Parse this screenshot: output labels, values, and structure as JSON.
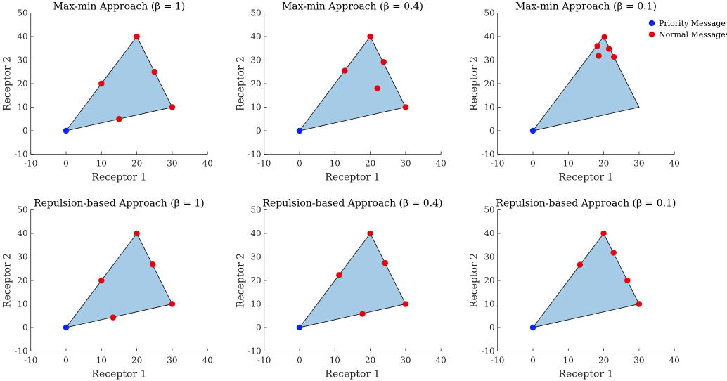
{
  "colors": {
    "priority": "#0b24fb",
    "normal": "#e8000b",
    "hull_fill": "#a6cbe6",
    "hull_stroke": "#1a1a1a",
    "axis": "#262626"
  },
  "legend": {
    "placement": "top-right",
    "entries": [
      "Priority Message",
      "Normal Messages"
    ]
  },
  "chart_data": [
    {
      "type": "scatter",
      "title": "Max-min Approach (β = 1)",
      "xlabel": "Receptor 1",
      "ylabel": "Receptor 2",
      "xlim": [
        -10,
        40
      ],
      "ylim": [
        -10,
        50
      ],
      "xticks": [
        -10,
        0,
        10,
        20,
        30,
        40
      ],
      "yticks": [
        -10,
        0,
        10,
        20,
        30,
        40,
        50
      ],
      "hull": [
        [
          0,
          0
        ],
        [
          20,
          40
        ],
        [
          30,
          10
        ]
      ],
      "priority": [
        [
          0,
          0
        ]
      ],
      "normal": [
        [
          20,
          40
        ],
        [
          10,
          20
        ],
        [
          25,
          25
        ],
        [
          30,
          10
        ],
        [
          15,
          5
        ]
      ]
    },
    {
      "type": "scatter",
      "title": "Max-min Approach (β = 0.4)",
      "xlabel": "Receptor 1",
      "ylabel": "Receptor 2",
      "xlim": [
        -10,
        40
      ],
      "ylim": [
        -10,
        50
      ],
      "xticks": [
        -10,
        0,
        10,
        20,
        30,
        40
      ],
      "yticks": [
        -10,
        0,
        10,
        20,
        30,
        40,
        50
      ],
      "hull": [
        [
          0,
          0
        ],
        [
          20,
          40
        ],
        [
          30,
          10
        ]
      ],
      "priority": [
        [
          0,
          0
        ]
      ],
      "normal": [
        [
          20,
          40
        ],
        [
          12.8,
          25.5
        ],
        [
          23.8,
          29.2
        ],
        [
          22,
          18
        ],
        [
          30,
          10
        ]
      ]
    },
    {
      "type": "scatter",
      "title": "Max-min Approach (β = 0.1)",
      "xlabel": "Receptor 1",
      "ylabel": "Receptor 2",
      "xlim": [
        -10,
        40
      ],
      "ylim": [
        -10,
        50
      ],
      "xticks": [
        -10,
        0,
        10,
        20,
        30,
        40
      ],
      "yticks": [
        -10,
        0,
        10,
        20,
        30,
        40,
        50
      ],
      "hull": [
        [
          0,
          0
        ],
        [
          20,
          40
        ],
        [
          30,
          10
        ]
      ],
      "priority": [
        [
          0,
          0
        ]
      ],
      "normal": [
        [
          20.2,
          39.8
        ],
        [
          18.2,
          36
        ],
        [
          21.5,
          34.8
        ],
        [
          18.6,
          31.8
        ],
        [
          22.9,
          31.3
        ]
      ],
      "legend": true
    },
    {
      "type": "scatter",
      "title": "Repulsion-based Approach (β = 1)",
      "xlabel": "Receptor 1",
      "ylabel": "Receptor 2",
      "xlim": [
        -10,
        40
      ],
      "ylim": [
        -10,
        50
      ],
      "xticks": [
        -10,
        0,
        10,
        20,
        30,
        40
      ],
      "yticks": [
        -10,
        0,
        10,
        20,
        30,
        40,
        50
      ],
      "hull": [
        [
          0,
          0
        ],
        [
          20,
          40
        ],
        [
          30,
          10
        ]
      ],
      "priority": [
        [
          0,
          0
        ]
      ],
      "normal": [
        [
          20,
          40
        ],
        [
          10,
          20
        ],
        [
          24.5,
          26.8
        ],
        [
          30,
          10
        ],
        [
          13.3,
          4.3
        ]
      ]
    },
    {
      "type": "scatter",
      "title": "Repulsion-based Approach (β = 0.4)",
      "xlabel": "Receptor 1",
      "ylabel": "Receptor 2",
      "xlim": [
        -10,
        40
      ],
      "ylim": [
        -10,
        50
      ],
      "xticks": [
        -10,
        0,
        10,
        20,
        30,
        40
      ],
      "yticks": [
        -10,
        0,
        10,
        20,
        30,
        40,
        50
      ],
      "hull": [
        [
          0,
          0
        ],
        [
          20,
          40
        ],
        [
          30,
          10
        ]
      ],
      "priority": [
        [
          0,
          0
        ]
      ],
      "normal": [
        [
          20,
          40
        ],
        [
          11.2,
          22.3
        ],
        [
          24.2,
          27.4
        ],
        [
          17.8,
          5.8
        ],
        [
          30,
          10
        ]
      ]
    },
    {
      "type": "scatter",
      "title": "Repulsion-based Approach (β = 0.1)",
      "xlabel": "Receptor 1",
      "ylabel": "Receptor 2",
      "xlim": [
        -10,
        40
      ],
      "ylim": [
        -10,
        50
      ],
      "xticks": [
        -10,
        0,
        10,
        20,
        30,
        40
      ],
      "yticks": [
        -10,
        0,
        10,
        20,
        30,
        40,
        50
      ],
      "hull": [
        [
          0,
          0
        ],
        [
          20,
          40
        ],
        [
          30,
          10
        ]
      ],
      "priority": [
        [
          0,
          0
        ]
      ],
      "normal": [
        [
          20,
          40
        ],
        [
          13.3,
          26.7
        ],
        [
          22.8,
          31.8
        ],
        [
          26.7,
          20
        ],
        [
          30,
          10
        ]
      ]
    }
  ]
}
